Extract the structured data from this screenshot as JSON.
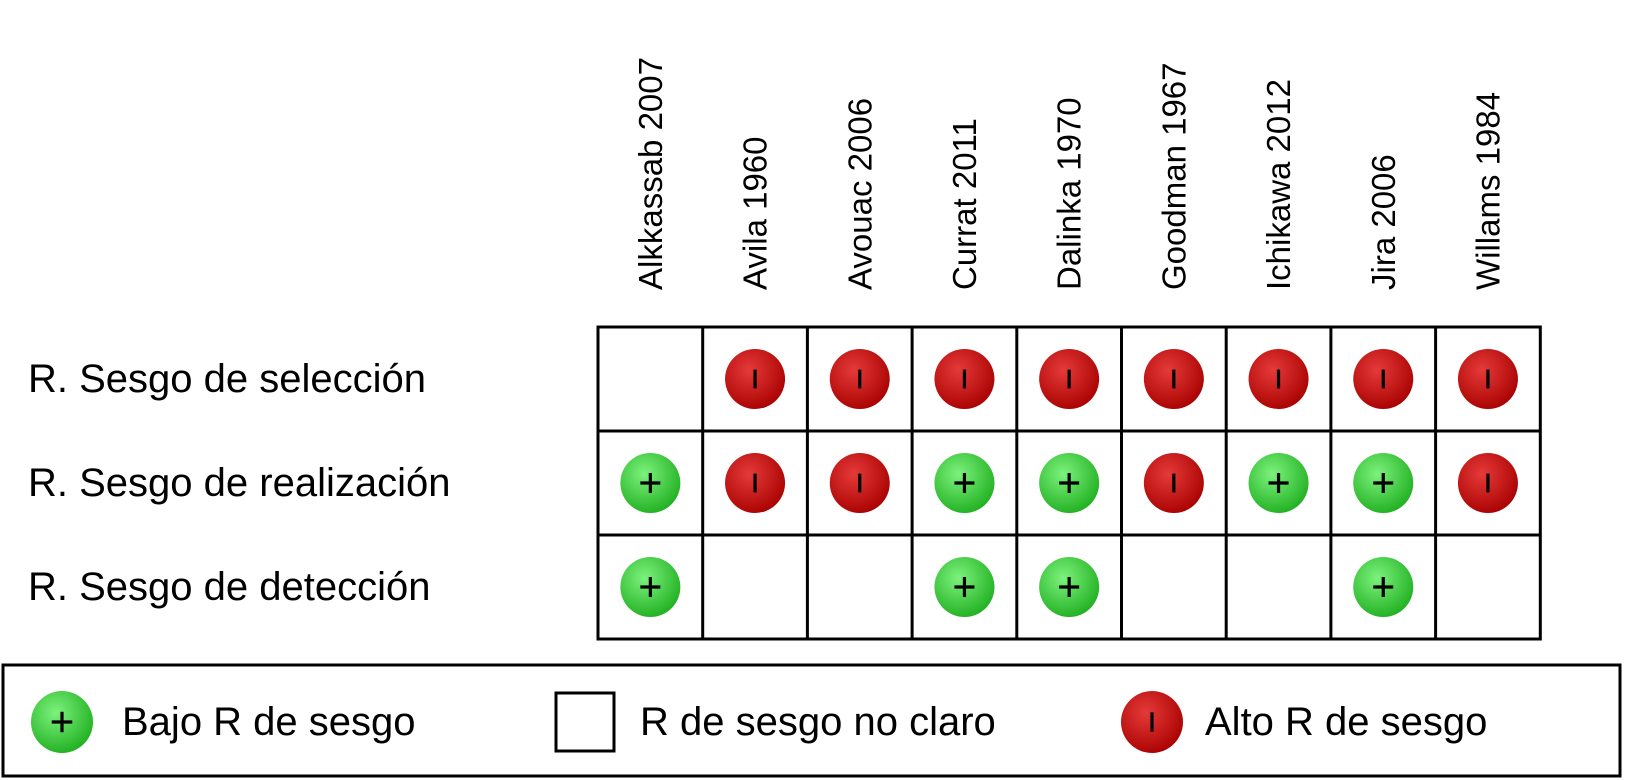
{
  "chart_data": {
    "type": "table",
    "title": "",
    "studies": [
      "Alkkassab 2007",
      "Avila 1960",
      "Avouac 2006",
      "Currat 2011",
      "Dalinka 1970",
      "Goodman 1967",
      "Ichikawa 2012",
      "Jira 2006",
      "Willams 1984"
    ],
    "rows": [
      {
        "label": "R. Sesgo de selección",
        "values": [
          "unclear",
          "high",
          "high",
          "high",
          "high",
          "high",
          "high",
          "high",
          "high"
        ]
      },
      {
        "label": "R. Sesgo de realización",
        "values": [
          "low",
          "high",
          "high",
          "low",
          "low",
          "high",
          "low",
          "low",
          "high"
        ]
      },
      {
        "label": "R. Sesgo de detección",
        "values": [
          "low",
          "unclear",
          "unclear",
          "low",
          "low",
          "unclear",
          "unclear",
          "low",
          "unclear"
        ]
      }
    ],
    "symbols": {
      "low": "+",
      "high": "-"
    },
    "legend": [
      {
        "key": "low",
        "label": "Bajo R de sesgo"
      },
      {
        "key": "unclear",
        "label": "R de sesgo no claro"
      },
      {
        "key": "high",
        "label": "Alto R de sesgo"
      }
    ],
    "colors": {
      "low": "#22bb22",
      "low_light": "#66ee66",
      "high": "#b00000",
      "high_light": "#e23030",
      "border": "#000000"
    }
  }
}
